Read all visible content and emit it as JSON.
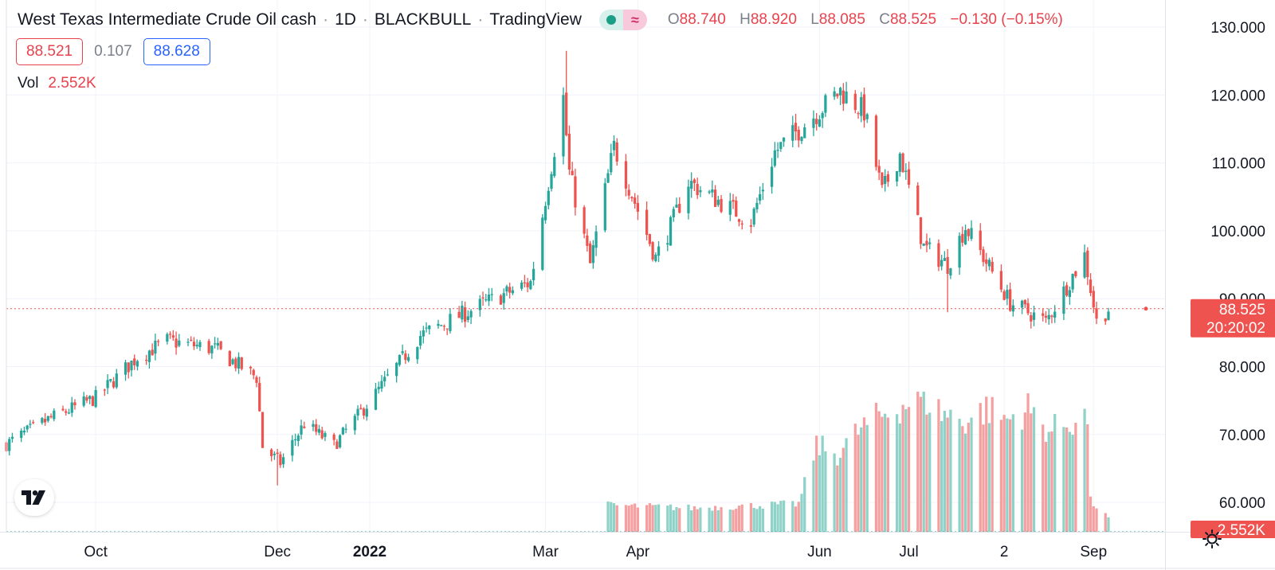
{
  "header": {
    "symbol": "West Texas Intermediate Crude Oil cash",
    "interval": "1D",
    "broker": "BLACKBULL",
    "platform": "TradingView",
    "ohlc": {
      "o_label": "O",
      "o": "88.740",
      "h_label": "H",
      "h": "88.920",
      "l_label": "L",
      "l": "88.085",
      "c_label": "C",
      "c": "88.525",
      "change": "−0.130 (−0.15%)"
    }
  },
  "quote": {
    "sell": "88.521",
    "spread": "0.107",
    "buy": "88.628"
  },
  "volume": {
    "label": "Vol",
    "value": "2.552K"
  },
  "price_tag": {
    "price": "88.525",
    "countdown": "20:20:02"
  },
  "colors": {
    "up": "#26a69a",
    "down": "#ef5350",
    "up_vol": "#8ed2c8",
    "down_vol": "#f5a0a0"
  },
  "chart_data": {
    "type": "candlestick",
    "y_axis_labels": [
      "130.000",
      "120.000",
      "110.000",
      "100.000",
      "90.000",
      "80.000",
      "70.000",
      "60.000"
    ],
    "y_ticks": [
      130,
      120,
      110,
      100,
      90,
      80,
      70,
      60
    ],
    "x_labels": [
      {
        "label": "Oct",
        "date": "2021-10-01"
      },
      {
        "label": "Dec",
        "date": "2021-12-01"
      },
      {
        "label": "2022",
        "date": "2022-01-01",
        "bold": true
      },
      {
        "label": "Mar",
        "date": "2022-03-01"
      },
      {
        "label": "Apr",
        "date": "2022-04-01"
      },
      {
        "label": "Jun",
        "date": "2022-06-01"
      },
      {
        "label": "Jul",
        "date": "2022-07-01"
      },
      {
        "label": "2",
        "date": "2022-08-02"
      },
      {
        "label": "Sep",
        "date": "2022-09-01"
      }
    ],
    "x_range": [
      "2021-09-01",
      "2022-09-25"
    ],
    "y_range": [
      56,
      134
    ],
    "last_price": 88.525,
    "volume_axis_label": "2.552K",
    "close_anchors": [
      {
        "date": "2021-09-01",
        "close": 68.6
      },
      {
        "date": "2021-09-15",
        "close": 72.2
      },
      {
        "date": "2021-10-01",
        "close": 75.4
      },
      {
        "date": "2021-10-15",
        "close": 81.4
      },
      {
        "date": "2021-10-25",
        "close": 83.8
      },
      {
        "date": "2021-11-10",
        "close": 82.6
      },
      {
        "date": "2021-11-24",
        "close": 78.4
      },
      {
        "date": "2021-11-26",
        "close": 68.2
      },
      {
        "date": "2021-12-02",
        "close": 65.8
      },
      {
        "date": "2021-12-10",
        "close": 71.6
      },
      {
        "date": "2021-12-20",
        "close": 68.4
      },
      {
        "date": "2022-01-03",
        "close": 76.0
      },
      {
        "date": "2022-01-18",
        "close": 84.6
      },
      {
        "date": "2022-02-10",
        "close": 89.6
      },
      {
        "date": "2022-02-24",
        "close": 92.4
      },
      {
        "date": "2022-03-07",
        "close": 119.6
      },
      {
        "date": "2022-03-09",
        "close": 108.6
      },
      {
        "date": "2022-03-16",
        "close": 95.0
      },
      {
        "date": "2022-03-24",
        "close": 112.4
      },
      {
        "date": "2022-04-07",
        "close": 96.0
      },
      {
        "date": "2022-04-12",
        "close": 100.6
      },
      {
        "date": "2022-04-18",
        "close": 107.2
      },
      {
        "date": "2022-05-09",
        "close": 101.4
      },
      {
        "date": "2022-05-17",
        "close": 111.6
      },
      {
        "date": "2022-06-08",
        "close": 120.6
      },
      {
        "date": "2022-06-16",
        "close": 117.6
      },
      {
        "date": "2022-06-22",
        "close": 105.6
      },
      {
        "date": "2022-06-28",
        "close": 111.4
      },
      {
        "date": "2022-07-06",
        "close": 97.6
      },
      {
        "date": "2022-07-14",
        "close": 95.0
      },
      {
        "date": "2022-07-20",
        "close": 100.6
      },
      {
        "date": "2022-08-04",
        "close": 89.4
      },
      {
        "date": "2022-08-16",
        "close": 86.6
      },
      {
        "date": "2022-08-29",
        "close": 96.4
      },
      {
        "date": "2022-09-02",
        "close": 86.6
      },
      {
        "date": "2022-09-06",
        "close": 88.5
      }
    ],
    "spikes": [
      {
        "date": "2022-03-08",
        "high": 126.5
      },
      {
        "date": "2022-06-08",
        "high": 121.2
      },
      {
        "date": "2021-12-01",
        "low": 62.5
      },
      {
        "date": "2022-07-14",
        "low": 88.0
      }
    ],
    "volume_start": "2022-03-22",
    "volume_bars": [
      {
        "date": "2022-03-22",
        "v": 0.19
      },
      {
        "date": "2022-04-20",
        "v": 0.17
      },
      {
        "date": "2022-05-25",
        "v": 0.2
      },
      {
        "date": "2022-05-31",
        "v": 0.62
      },
      {
        "date": "2022-06-07",
        "v": 0.55
      },
      {
        "date": "2022-06-14",
        "v": 0.72
      },
      {
        "date": "2022-06-21",
        "v": 0.82
      },
      {
        "date": "2022-06-28",
        "v": 0.9
      },
      {
        "date": "2022-07-06",
        "v": 0.96
      },
      {
        "date": "2022-07-12",
        "v": 0.85
      },
      {
        "date": "2022-07-20",
        "v": 0.79
      },
      {
        "date": "2022-07-27",
        "v": 0.88
      },
      {
        "date": "2022-08-03",
        "v": 0.8
      },
      {
        "date": "2022-08-10",
        "v": 0.88
      },
      {
        "date": "2022-08-17",
        "v": 0.72
      },
      {
        "date": "2022-08-24",
        "v": 0.78
      },
      {
        "date": "2022-08-30",
        "v": 0.82
      },
      {
        "date": "2022-08-31",
        "v": 0.22
      },
      {
        "date": "2022-09-06",
        "v": 0.1
      }
    ]
  }
}
